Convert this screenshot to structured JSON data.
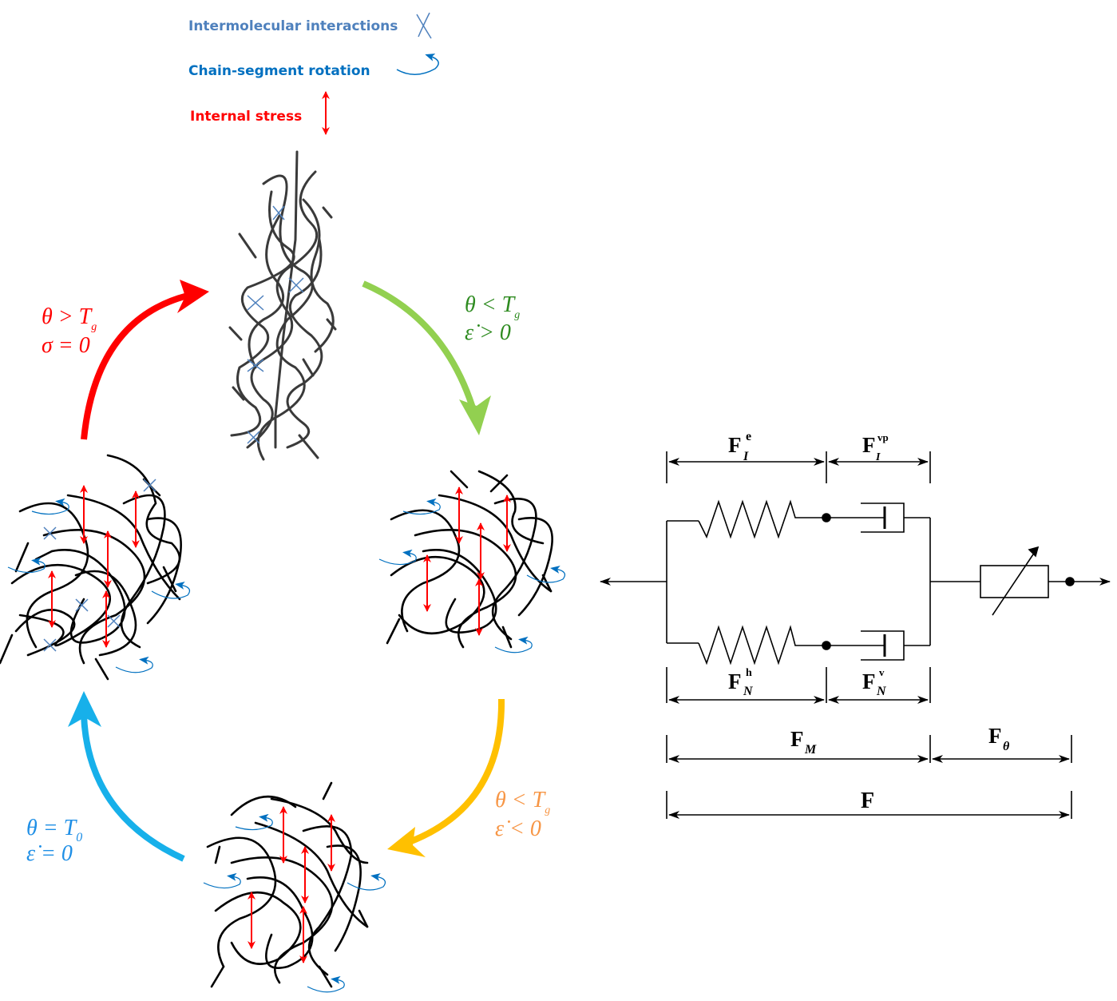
{
  "legend": {
    "interactions": {
      "text": "Intermolecular interactions",
      "color": "#4f81bd"
    },
    "rotation": {
      "text": "Chain-segment rotation",
      "color": "#0070c0"
    },
    "stress": {
      "text": "Internal stress",
      "color": "#ff0000"
    }
  },
  "cycle": {
    "top_right": {
      "line1": "θ < T",
      "sub1": "g",
      "line2": "ε̇ > 0",
      "color": "#2e8b20",
      "arrow_color": "#92d050"
    },
    "bottom_right": {
      "line1": "θ < T",
      "sub1": "g",
      "line2": "ε̇ < 0",
      "color": "#f79646",
      "arrow_color": "#ffc000"
    },
    "bottom_left": {
      "line1": "θ = T",
      "sub1": "0",
      "line2": "ε̇ = 0",
      "color": "#1f8fe6",
      "arrow_color": "#17b0ea"
    },
    "top_left": {
      "line1": "θ > T",
      "sub1": "g",
      "line2": "σ = 0",
      "color": "#ff0000",
      "arrow_color": "#ff0000"
    }
  },
  "model": {
    "FI_e": {
      "base": "F",
      "sub": "I",
      "sup": "e"
    },
    "FI_vp": {
      "base": "F",
      "sub": "I",
      "sup": "vp"
    },
    "FN_h": {
      "base": "F",
      "sub": "N",
      "sup": "h"
    },
    "FN_v": {
      "base": "F",
      "sub": "N",
      "sup": "v"
    },
    "FM": {
      "base": "F",
      "sub": "M"
    },
    "Ftheta": {
      "base": "F",
      "sub": "θ"
    },
    "F": {
      "base": "F"
    }
  }
}
